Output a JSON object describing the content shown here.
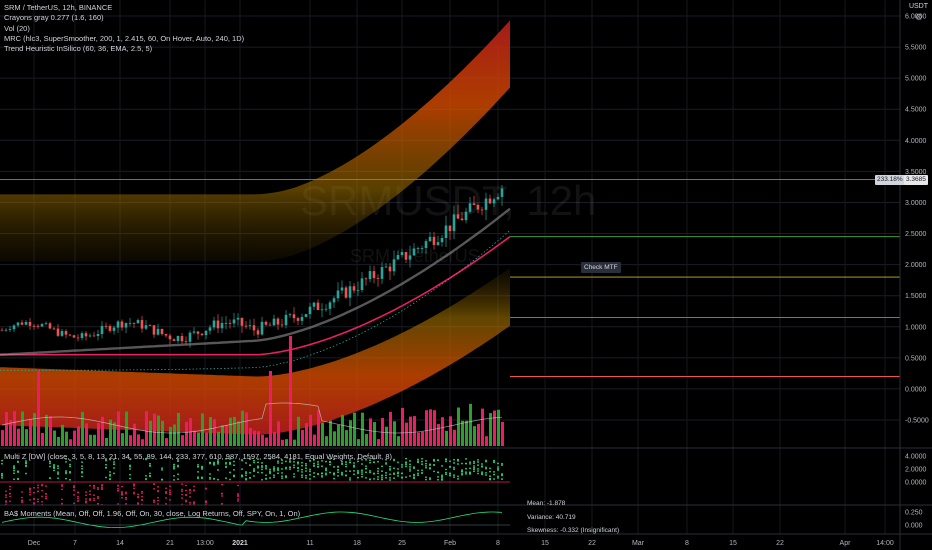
{
  "header": {
    "symbol_line": "SRM / TetherUS, 12h, BINANCE",
    "indicators": [
      "Crayons gray 0.277 (1.6, 160)",
      "Vol (20)",
      "MRC (hlc3, SuperSmoother, 200, 1, 2.415, 60, On Hover, Auto, 240, 1D)",
      "Trend Heuristic InSilico (60, 36, EMA, 2.5, 5)"
    ]
  },
  "watermark": {
    "symbol": "SRMUSDT, 12h",
    "name": "SRM / TetherUS"
  },
  "currency": "USDT",
  "price_tag": {
    "percent": "233.18%",
    "price": "3.3685"
  },
  "check_mtf": "Check MTF",
  "multiz_label": "Multi Z [DW] (close, 3, 5, 8, 13, 21, 34, 55, 89, 144, 233, 377, 610, 987, 1597, 2584, 4181, Equal Weights, Default, 8)",
  "moments_label": "BA$ Moments (Mean, Off, Off, 1.96, Off, On, 30, close, Log Returns, Off, SPY, On, 1, On)",
  "stats": {
    "mean": "Mean: -1.878",
    "variance": "Variance: 40.719",
    "skewness": "Skewness: -0.332 (Insignificant)"
  },
  "colors": {
    "bull": "#26a69a",
    "bear": "#ef5350",
    "vol_green": "#2e9e2e",
    "vol_pink": "#e91e63",
    "band": "#ff9800"
  },
  "chart_data": {
    "type": "line",
    "price_axis": {
      "ticks": [
        6.0,
        5.5,
        5.0,
        4.5,
        4.0,
        3.5,
        3.0,
        2.5,
        2.0,
        1.5,
        1.0,
        0.5,
        0.0,
        -0.5
      ],
      "labels": [
        "6.0000",
        "5.5000",
        "5.0000",
        "4.5000",
        "4.0000",
        "3.5000",
        "3.0000",
        "2.5000",
        "2.0000",
        "1.5000",
        "1.0000",
        "0.5000",
        "0.0000",
        "-0.5000"
      ]
    },
    "multiz_axis": {
      "ticks": [
        4.0,
        2.0,
        0.0
      ],
      "labels": [
        "4.0000",
        "2.0000",
        "0.0000"
      ]
    },
    "moments_axis": {
      "ticks": [
        0.25,
        0.0
      ],
      "labels": [
        "0.250",
        "0.000"
      ]
    },
    "time_axis": {
      "labels": [
        "Dec",
        "7",
        "14",
        "21",
        "13:00",
        "2021",
        "11",
        "18",
        "25",
        "Feb",
        "8",
        "15",
        "22",
        "Mar",
        "8",
        "15",
        "22",
        "Apr",
        "14:00"
      ]
    },
    "price_levels": [
      {
        "value": 3.3685,
        "color": "#ef5350"
      },
      {
        "value": 2.45,
        "color": "#4caf50"
      },
      {
        "value": 1.8,
        "color": "#c9b037"
      },
      {
        "value": 1.15,
        "color": "#4caf50"
      },
      {
        "value": 0.2,
        "color": "#ef5350"
      }
    ]
  }
}
